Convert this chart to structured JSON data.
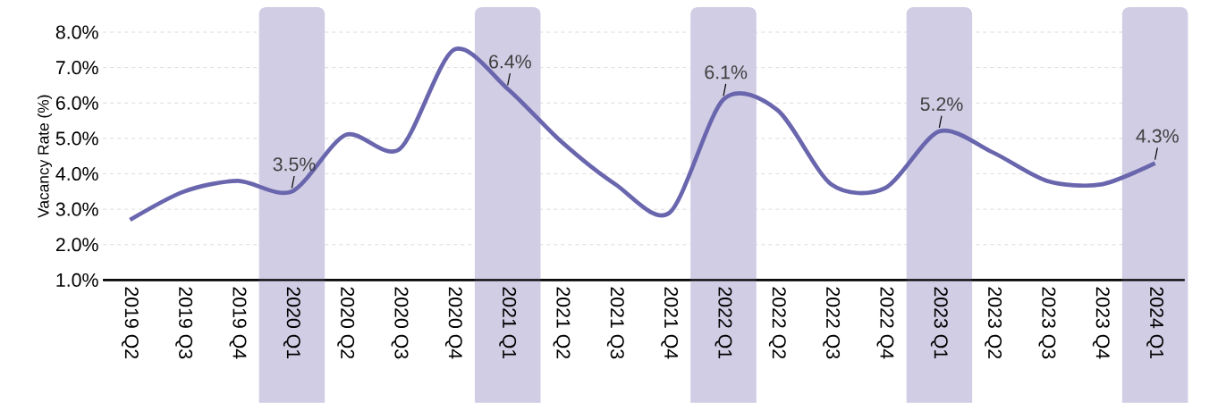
{
  "chart_data": {
    "type": "line",
    "ylabel": "Vacancy Rate (%)",
    "categories": [
      "2019 Q2",
      "2019 Q3",
      "2019 Q4",
      "2020 Q1",
      "2020 Q2",
      "2020 Q3",
      "2020 Q4",
      "2021 Q1",
      "2021 Q2",
      "2021 Q3",
      "2021 Q4",
      "2022 Q1",
      "2022 Q2",
      "2022 Q3",
      "2022 Q4",
      "2023 Q1",
      "2023 Q2",
      "2023 Q3",
      "2023 Q4",
      "2024 Q1"
    ],
    "series": [
      {
        "color": "#6a66ae",
        "values": [
          2.7,
          3.5,
          3.8,
          3.5,
          5.1,
          4.7,
          7.5,
          6.4,
          4.9,
          3.7,
          2.9,
          6.1,
          5.8,
          3.7,
          3.6,
          5.2,
          4.6,
          3.8,
          3.7,
          4.3
        ],
        "value_labels": [
          null,
          null,
          null,
          "3.5%",
          null,
          null,
          null,
          "6.4%",
          null,
          null,
          null,
          "6.1%",
          null,
          null,
          null,
          "5.2%",
          null,
          null,
          null,
          "4.3%"
        ]
      }
    ],
    "ylim": [
      1,
      8
    ],
    "yticks": [
      {
        "value": 1,
        "label": "1.0%"
      },
      {
        "value": 2,
        "label": "2.0%"
      },
      {
        "value": 3,
        "label": "3.0%"
      },
      {
        "value": 4,
        "label": "4.0%"
      },
      {
        "value": 5,
        "label": "5.0%"
      },
      {
        "value": 6,
        "label": "6.0%"
      },
      {
        "value": 7,
        "label": "7.0%"
      },
      {
        "value": 8,
        "label": "8.0%"
      }
    ],
    "grid": "y",
    "bands": [
      {
        "axis": "x",
        "from": "2020 Q1",
        "to": "2020 Q1",
        "color": "#d0cde4"
      },
      {
        "axis": "x",
        "from": "2021 Q1",
        "to": "2021 Q1",
        "color": "#d0cde4"
      },
      {
        "axis": "x",
        "from": "2022 Q1",
        "to": "2022 Q1",
        "color": "#d0cde4"
      },
      {
        "axis": "x",
        "from": "2023 Q1",
        "to": "2023 Q1",
        "color": "#d0cde4"
      },
      {
        "axis": "x",
        "from": "2024 Q1",
        "to": "2024 Q1",
        "color": "#d0cde4"
      }
    ]
  }
}
